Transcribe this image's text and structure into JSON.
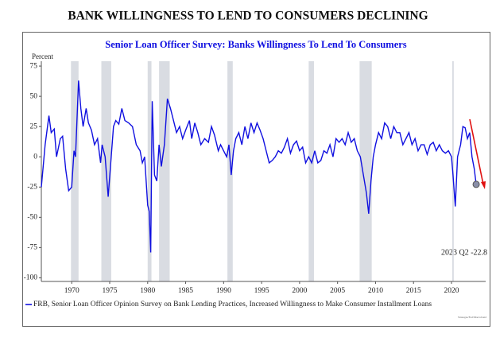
{
  "chart_data": {
    "type": "line",
    "page_title": "BANK WILLINGNESS TO LEND TO CONSUMERS DECLINING",
    "title": "Senior Loan Officer Survey: Banks Willingness To Lend To Consumers",
    "y_label": "Percent",
    "annotation": "2023 Q2 -22.8",
    "source": "Strategas/Fed/Macrobond",
    "xlim": [
      1966,
      2024.5
    ],
    "ylim": [
      -103,
      79
    ],
    "xticks": [
      1970,
      1975,
      1980,
      1985,
      1990,
      1995,
      2000,
      2005,
      2010,
      2015,
      2020
    ],
    "yticks": [
      75,
      50,
      25,
      0,
      -25,
      -50,
      -75,
      -100
    ],
    "recessions": [
      [
        1969.9,
        1970.9
      ],
      [
        1973.9,
        1975.2
      ],
      [
        1980.0,
        1980.5
      ],
      [
        1981.5,
        1982.9
      ],
      [
        1990.5,
        1991.2
      ],
      [
        2001.2,
        2001.9
      ],
      [
        2007.9,
        2009.5
      ],
      [
        2020.1,
        2020.3
      ]
    ],
    "series": [
      {
        "name": "FRB, Senior Loan Officer Opinion Survey on Bank Lending Practices, Increased Willingness to Make Consumer Installment Loans",
        "color": "#1010e0",
        "x": [
          1966.0,
          1966.5,
          1967.0,
          1967.3,
          1967.7,
          1968.0,
          1968.5,
          1968.8,
          1969.2,
          1969.6,
          1970.0,
          1970.3,
          1970.5,
          1970.9,
          1971.2,
          1971.5,
          1971.9,
          1972.2,
          1972.6,
          1973.0,
          1973.4,
          1973.8,
          1974.0,
          1974.4,
          1974.8,
          1975.2,
          1975.5,
          1975.8,
          1976.2,
          1976.6,
          1977.0,
          1977.5,
          1978.0,
          1978.5,
          1979.0,
          1979.3,
          1979.6,
          1980.0,
          1980.2,
          1980.4,
          1980.6,
          1980.9,
          1981.2,
          1981.5,
          1981.8,
          1982.2,
          1982.6,
          1983.0,
          1983.4,
          1983.8,
          1984.2,
          1984.6,
          1985.0,
          1985.5,
          1985.8,
          1986.2,
          1986.6,
          1987.0,
          1987.5,
          1988.0,
          1988.4,
          1988.8,
          1989.3,
          1989.6,
          1990.0,
          1990.4,
          1990.7,
          1991.0,
          1991.3,
          1991.6,
          1992.0,
          1992.4,
          1992.8,
          1993.2,
          1993.6,
          1994.0,
          1994.4,
          1994.8,
          1995.2,
          1995.6,
          1996.0,
          1996.4,
          1996.8,
          1997.2,
          1997.6,
          1998.0,
          1998.4,
          1998.8,
          1999.2,
          1999.6,
          2000.0,
          2000.4,
          2000.8,
          2001.2,
          2001.6,
          2002.0,
          2002.4,
          2002.8,
          2003.2,
          2003.6,
          2004.0,
          2004.4,
          2004.8,
          2005.2,
          2005.6,
          2006.0,
          2006.4,
          2006.8,
          2007.2,
          2007.6,
          2008.0,
          2008.4,
          2008.8,
          2009.1,
          2009.4,
          2009.7,
          2010.0,
          2010.4,
          2010.8,
          2011.2,
          2011.6,
          2012.0,
          2012.4,
          2012.8,
          2013.2,
          2013.6,
          2014.0,
          2014.4,
          2014.8,
          2015.2,
          2015.6,
          2016.0,
          2016.4,
          2016.8,
          2017.2,
          2017.6,
          2018.0,
          2018.4,
          2018.8,
          2019.2,
          2019.6,
          2020.0,
          2020.2,
          2020.5,
          2020.8,
          2021.2,
          2021.5,
          2021.8,
          2022.1,
          2022.4,
          2022.7,
          2023.0,
          2023.25
        ],
        "values": [
          -25,
          10,
          34,
          20,
          23,
          0,
          15,
          17,
          -10,
          -28,
          -25,
          5,
          0,
          63,
          40,
          25,
          40,
          28,
          22,
          10,
          15,
          -5,
          10,
          0,
          -33,
          0,
          25,
          30,
          27,
          40,
          30,
          28,
          25,
          10,
          5,
          -5,
          0,
          -40,
          -45,
          -79,
          46,
          -15,
          -20,
          10,
          -8,
          10,
          48,
          40,
          30,
          20,
          25,
          15,
          22,
          30,
          15,
          28,
          20,
          10,
          15,
          12,
          25,
          18,
          5,
          10,
          5,
          0,
          10,
          -15,
          5,
          15,
          20,
          10,
          25,
          15,
          28,
          20,
          28,
          22,
          15,
          5,
          -5,
          -3,
          0,
          5,
          3,
          8,
          15,
          3,
          10,
          13,
          5,
          8,
          -5,
          0,
          -5,
          5,
          -5,
          -3,
          5,
          3,
          10,
          0,
          15,
          12,
          15,
          10,
          20,
          12,
          15,
          5,
          0,
          -15,
          -30,
          -47,
          -20,
          0,
          10,
          20,
          15,
          28,
          25,
          15,
          25,
          20,
          20,
          10,
          15,
          20,
          10,
          15,
          5,
          10,
          10,
          2,
          10,
          12,
          5,
          10,
          5,
          3,
          5,
          0,
          -15,
          -41,
          0,
          10,
          25,
          24,
          15,
          20,
          0,
          -10,
          -22.8
        ]
      }
    ]
  }
}
